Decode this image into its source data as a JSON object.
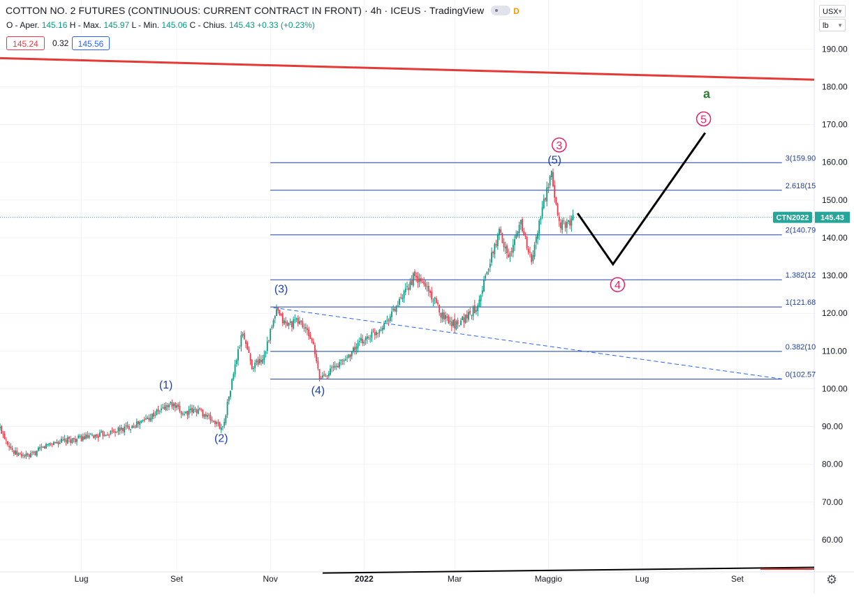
{
  "header": {
    "title": "COTTON NO. 2 FUTURES (CONTINUOUS: CURRENT CONTRACT IN FRONT) · 4h · ICEUS · TradingView",
    "badge": "D",
    "ohlc": {
      "o_label": "O - Aper.",
      "o": "145.16",
      "h_label": "H - Max.",
      "h": "145.97",
      "l_label": "L - Min.",
      "l": "145.06",
      "c_label": "C - Chius.",
      "c": "145.43",
      "change": "+0.33 (+0.23%)"
    },
    "bid": "145.24",
    "spread": "0.32",
    "ask": "145.56"
  },
  "controls": {
    "currency": "USX",
    "unit": "lb",
    "settings_icon": "gear-icon"
  },
  "colors": {
    "up": "#089981",
    "down": "#f23645",
    "fib": "#1e3fa6",
    "wave_blue": "#1b3fb3",
    "wave_red": "#e91e63",
    "resistance": "#e53935",
    "green_label": "#2e7d32",
    "price_tag": "#26a69a"
  },
  "chart_data": {
    "type": "candlestick",
    "symbol": "CTN2022",
    "last_price": 145.43,
    "y_axis": {
      "ticks": [
        "60.00",
        "70.00",
        "80.00",
        "90.00",
        "100.00",
        "110.00",
        "120.00",
        "130.00",
        "140.00",
        "150.00",
        "160.00",
        "170.00",
        "180.00",
        "190.00"
      ],
      "range": [
        51.5,
        203
      ]
    },
    "x_axis": {
      "labels": [
        "Lug",
        "Set",
        "Nov",
        "2022",
        "Mar",
        "Maggio",
        "Lug",
        "Set"
      ],
      "dates": [
        "2021-07-01",
        "2021-09-01",
        "2021-11-01",
        "2022-01-01",
        "2022-03-01",
        "2022-05-01",
        "2022-07-01",
        "2022-09-01"
      ],
      "range": [
        "2021-05-09",
        "2022-10-21"
      ]
    },
    "price_path": [
      [
        "2021-05-09",
        89.5
      ],
      [
        "2021-05-18",
        83.0
      ],
      [
        "2021-05-28",
        82.0
      ],
      [
        "2021-06-10",
        85.5
      ],
      [
        "2021-06-25",
        86.5
      ],
      [
        "2021-07-10",
        87.5
      ],
      [
        "2021-07-25",
        89.0
      ],
      [
        "2021-08-08",
        91.0
      ],
      [
        "2021-08-20",
        94.0
      ],
      [
        "2021-08-28",
        96.0
      ],
      [
        "2021-09-05",
        93.5
      ],
      [
        "2021-09-15",
        94.5
      ],
      [
        "2021-09-26",
        91.0
      ],
      [
        "2021-10-01",
        89.6
      ],
      [
        "2021-10-05",
        98.0
      ],
      [
        "2021-10-10",
        108.0
      ],
      [
        "2021-10-14",
        115.0
      ],
      [
        "2021-10-20",
        106.0
      ],
      [
        "2021-10-27",
        108.0
      ],
      [
        "2021-11-05",
        120.5
      ],
      [
        "2021-11-11",
        117.0
      ],
      [
        "2021-11-20",
        118.0
      ],
      [
        "2021-11-28",
        113.0
      ],
      [
        "2021-12-03",
        102.8
      ],
      [
        "2021-12-12",
        105.5
      ],
      [
        "2021-12-20",
        108.0
      ],
      [
        "2021-12-30",
        112.5
      ],
      [
        "2022-01-10",
        115.5
      ],
      [
        "2022-01-18",
        119.5
      ],
      [
        "2022-01-26",
        124.0
      ],
      [
        "2022-02-02",
        129.5
      ],
      [
        "2022-02-10",
        127.5
      ],
      [
        "2022-02-20",
        120.0
      ],
      [
        "2022-03-01",
        117.0
      ],
      [
        "2022-03-08",
        119.0
      ],
      [
        "2022-03-15",
        121.5
      ],
      [
        "2022-03-22",
        131.0
      ],
      [
        "2022-03-30",
        141.5
      ],
      [
        "2022-04-06",
        135.0
      ],
      [
        "2022-04-13",
        144.5
      ],
      [
        "2022-04-20",
        133.5
      ],
      [
        "2022-04-27",
        148.0
      ],
      [
        "2022-05-03",
        156.3
      ],
      [
        "2022-05-08",
        144.0
      ],
      [
        "2022-05-12",
        143.0
      ],
      [
        "2022-05-17",
        145.4
      ]
    ],
    "fibonacci": {
      "levels": [
        {
          "label": "3(159.90",
          "value": 159.9
        },
        {
          "label": "2.618(15",
          "value": 152.6
        },
        {
          "label": "2(140.79",
          "value": 140.79
        },
        {
          "label": "1.382(12",
          "value": 128.9
        },
        {
          "label": "1(121.68",
          "value": 121.68
        },
        {
          "label": "0.382(10",
          "value": 109.9
        },
        {
          "label": "0(102.57",
          "value": 102.57
        }
      ],
      "start": "2021-11-01",
      "end": "2022-09-30"
    },
    "wave_labels_blue": [
      {
        "label": "(1)",
        "date": "2021-08-25",
        "value": 100.1
      },
      {
        "label": "(2)",
        "date": "2021-09-30",
        "value": 86.0
      },
      {
        "label": "(3)",
        "date": "2021-11-08",
        "value": 125.5
      },
      {
        "label": "(4)",
        "date": "2021-12-02",
        "value": 98.6
      },
      {
        "label": "(5)",
        "date": "2022-05-05",
        "value": 159.7
      }
    ],
    "wave_labels_red": [
      {
        "label": "3",
        "date": "2022-05-08",
        "value": 164.6
      },
      {
        "label": "4",
        "date": "2022-06-15",
        "value": 127.6
      },
      {
        "label": "5",
        "date": "2022-08-10",
        "value": 171.5
      }
    ],
    "annotation_green": {
      "label": "a",
      "date": "2022-08-12",
      "value": 177.0
    },
    "projection_path": [
      [
        "2022-05-20",
        146.5
      ],
      [
        "2022-06-12",
        133.0
      ],
      [
        "2022-08-11",
        167.8
      ]
    ],
    "resistance_line": [
      [
        "2021-05-09",
        187.6
      ],
      [
        "2022-10-21",
        181.9
      ]
    ],
    "trend_dashed": [
      [
        "2021-11-03",
        121.5
      ],
      [
        "2022-09-30",
        102.6
      ]
    ],
    "support_line": [
      [
        "2021-12-05",
        51.2
      ],
      [
        "2022-10-21",
        52.7
      ]
    ]
  }
}
